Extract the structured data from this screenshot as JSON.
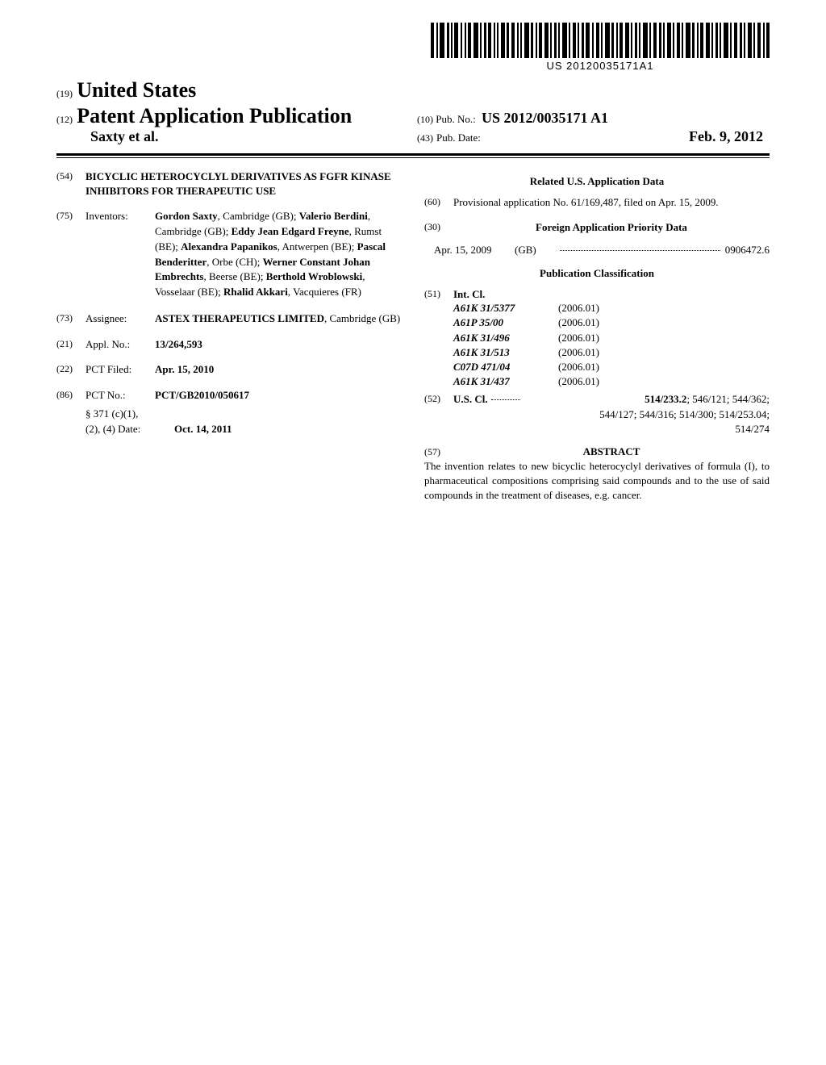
{
  "barcode": {
    "text": "US 20120035171A1"
  },
  "header": {
    "left": {
      "code19": "(19)",
      "country": "United States",
      "code12": "(12)",
      "pub_type": "Patent Application Publication",
      "authors": "Saxty et al."
    },
    "right": {
      "code10": "(10)",
      "pubno_label": "Pub. No.:",
      "pubno": "US 2012/0035171 A1",
      "code43": "(43)",
      "pubdate_label": "Pub. Date:",
      "pubdate": "Feb. 9, 2012"
    }
  },
  "left_col": {
    "f54": {
      "code": "(54)",
      "title": "BICYCLIC HETEROCYCLYL DERIVATIVES AS FGFR KINASE INHIBITORS FOR THERAPEUTIC USE"
    },
    "f75": {
      "code": "(75)",
      "label": "Inventors:",
      "text_parts": [
        {
          "b": "Gordon Saxty",
          "r": ", Cambridge (GB); "
        },
        {
          "b": "Valerio Berdini",
          "r": ", Cambridge (GB); "
        },
        {
          "b": "Eddy Jean Edgard Freyne",
          "r": ", Rumst (BE); "
        },
        {
          "b": "Alexandra Papanikos",
          "r": ", Antwerpen (BE); "
        },
        {
          "b": "Pascal Benderitter",
          "r": ", Orbe (CH); "
        },
        {
          "b": "Werner Constant Johan Embrechts",
          "r": ", Beerse (BE); "
        },
        {
          "b": "Berthold Wroblowski",
          "r": ", Vosselaar (BE); "
        },
        {
          "b": "Rhalid Akkari",
          "r": ", Vacquieres (FR)"
        }
      ]
    },
    "f73": {
      "code": "(73)",
      "label": "Assignee:",
      "name": "ASTEX THERAPEUTICS LIMITED",
      "loc": ", Cambridge (GB)"
    },
    "f21": {
      "code": "(21)",
      "label": "Appl. No.:",
      "value": "13/264,593"
    },
    "f22": {
      "code": "(22)",
      "label": "PCT Filed:",
      "value": "Apr. 15, 2010"
    },
    "f86": {
      "code": "(86)",
      "label": "PCT No.:",
      "value": "PCT/GB2010/050617",
      "s371_l1": "§ 371 (c)(1),",
      "s371_l2_label": "(2), (4) Date:",
      "s371_l2_value": "Oct. 14, 2011"
    }
  },
  "right_col": {
    "related_head": "Related U.S. Application Data",
    "f60": {
      "code": "(60)",
      "text": "Provisional application No. 61/169,487, filed on Apr. 15, 2009."
    },
    "f30": {
      "code": "(30)",
      "head": "Foreign Application Priority Data"
    },
    "priority": {
      "date": "Apr. 15, 2009",
      "country": "(GB)",
      "number": "0906472.6"
    },
    "pubclass_head": "Publication Classification",
    "f51": {
      "code": "(51)",
      "label": "Int. Cl.",
      "rows": [
        {
          "c": "A61K 31/5377",
          "y": "(2006.01)"
        },
        {
          "c": "A61P 35/00",
          "y": "(2006.01)"
        },
        {
          "c": "A61K 31/496",
          "y": "(2006.01)"
        },
        {
          "c": "A61K 31/513",
          "y": "(2006.01)"
        },
        {
          "c": "C07D 471/04",
          "y": "(2006.01)"
        },
        {
          "c": "A61K 31/437",
          "y": "(2006.01)"
        }
      ]
    },
    "f52": {
      "code": "(52)",
      "label": "U.S. Cl.",
      "line1_bold": "514/233.2",
      "line1_rest": "; 546/121; 544/362;",
      "line2": "544/127; 544/316; 514/300; 514/253.04;",
      "line3": "514/274"
    },
    "f57": {
      "code": "(57)",
      "head": "ABSTRACT",
      "body": "The invention relates to new bicyclic heterocyclyl derivatives of formula (I), to pharmaceutical compositions comprising said compounds and to the use of said compounds in the treatment of diseases, e.g. cancer."
    }
  }
}
